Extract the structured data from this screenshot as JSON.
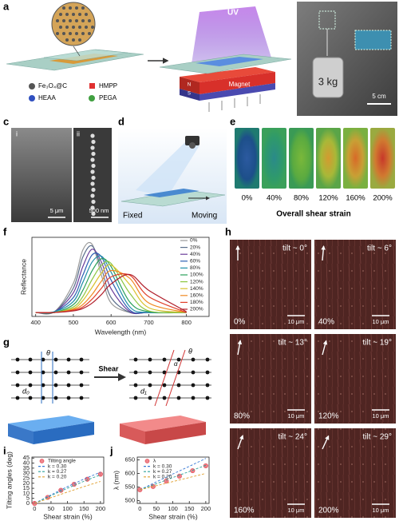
{
  "panel_labels": [
    "a",
    "b",
    "c",
    "d",
    "e",
    "f",
    "g",
    "h",
    "i",
    "j"
  ],
  "panel_a": {
    "legend": [
      "Fe₃O₄@C",
      "HMPP",
      "HEAA",
      "PEGA"
    ],
    "uv": "UV",
    "magnet": "Magnet",
    "north": "N",
    "south": "S"
  },
  "panel_b": {
    "weight": "3 kg",
    "scale": "5 cm"
  },
  "panel_c": {
    "sub_labels": [
      "i",
      "ii"
    ],
    "scales": [
      "5 μm",
      "500 nm"
    ]
  },
  "panel_d": {
    "fixed": "Fixed",
    "moving": "Moving"
  },
  "panel_e": {
    "strains": [
      "0%",
      "40%",
      "80%",
      "120%",
      "160%",
      "200%"
    ],
    "axis_label": "Overall shear strain"
  },
  "panel_g": {
    "labels": [
      "θ",
      "d₀",
      "Shear",
      "θ",
      "α",
      "d₁"
    ]
  },
  "panel_h": {
    "tiles": [
      {
        "tilt": "tilt ~ 0°",
        "strain": "0%",
        "scale": "10 μm"
      },
      {
        "tilt": "tilt ~ 6°",
        "strain": "40%",
        "scale": "10 μm"
      },
      {
        "tilt": "tilt ~ 13°",
        "strain": "80%",
        "scale": "10 μm"
      },
      {
        "tilt": "tilt ~ 19°",
        "strain": "120%",
        "scale": "10 μm"
      },
      {
        "tilt": "tilt ~ 24°",
        "strain": "160%",
        "scale": "10 μm"
      },
      {
        "tilt": "tilt ~ 29°",
        "strain": "200%",
        "scale": "10 μm"
      }
    ]
  },
  "chart_data": [
    {
      "type": "line",
      "smooth": true,
      "xlabel": "Wavelength (nm)",
      "ylabel": "Reflectance",
      "x": [
        400,
        450,
        500,
        525,
        550,
        575,
        600,
        650,
        700,
        800
      ],
      "xlim": [
        390,
        860
      ],
      "xticks": [
        400,
        500,
        600,
        700,
        800
      ],
      "ylim": [
        0,
        1
      ],
      "legend": "right",
      "series": [
        {
          "name": "0%",
          "color": "#9a9a9a",
          "values": [
            0.05,
            0.06,
            0.42,
            0.84,
            0.91,
            0.51,
            0.17,
            0.05,
            0.05,
            0.05
          ]
        },
        {
          "name": "20%",
          "color": "#5b6f8c",
          "values": [
            0.05,
            0.06,
            0.36,
            0.75,
            0.89,
            0.6,
            0.24,
            0.05,
            0.05,
            0.05
          ]
        },
        {
          "name": "40%",
          "color": "#6a3d9a",
          "values": [
            0.05,
            0.06,
            0.3,
            0.63,
            0.85,
            0.68,
            0.35,
            0.06,
            0.05,
            0.05
          ]
        },
        {
          "name": "60%",
          "color": "#2c5fb3",
          "values": [
            0.05,
            0.06,
            0.24,
            0.52,
            0.78,
            0.75,
            0.46,
            0.08,
            0.05,
            0.05
          ]
        },
        {
          "name": "80%",
          "color": "#1f8fa8",
          "values": [
            0.05,
            0.06,
            0.19,
            0.43,
            0.69,
            0.76,
            0.56,
            0.12,
            0.05,
            0.05
          ]
        },
        {
          "name": "100%",
          "color": "#2aa05a",
          "values": [
            0.05,
            0.05,
            0.15,
            0.33,
            0.58,
            0.73,
            0.63,
            0.18,
            0.06,
            0.05
          ]
        },
        {
          "name": "120%",
          "color": "#8cc63f",
          "values": [
            0.05,
            0.05,
            0.12,
            0.25,
            0.47,
            0.65,
            0.67,
            0.29,
            0.07,
            0.05
          ]
        },
        {
          "name": "140%",
          "color": "#d9c22e",
          "values": [
            0.05,
            0.05,
            0.1,
            0.2,
            0.37,
            0.55,
            0.65,
            0.4,
            0.11,
            0.05
          ]
        },
        {
          "name": "160%",
          "color": "#f08a24",
          "values": [
            0.05,
            0.05,
            0.09,
            0.15,
            0.28,
            0.45,
            0.58,
            0.48,
            0.17,
            0.05
          ]
        },
        {
          "name": "180%",
          "color": "#e0402a",
          "values": [
            0.05,
            0.05,
            0.08,
            0.12,
            0.22,
            0.36,
            0.5,
            0.52,
            0.25,
            0.05
          ]
        },
        {
          "name": "200%",
          "color": "#b01e2a",
          "values": [
            0.05,
            0.05,
            0.07,
            0.1,
            0.17,
            0.28,
            0.41,
            0.53,
            0.33,
            0.06
          ]
        }
      ]
    },
    {
      "type": "scatter",
      "xlabel": "Shear strain (%)",
      "ylabel": "Tilting angles (deg)",
      "xlim": [
        -8,
        210
      ],
      "xticks": [
        0,
        50,
        100,
        150,
        200
      ],
      "ylim": [
        0,
        46
      ],
      "yticks": [
        0,
        5,
        10,
        15,
        20,
        25,
        30,
        35,
        40,
        45
      ],
      "legend": "upper left",
      "series": [
        {
          "name": "Tilting angle",
          "color": "#e8606a",
          "x": [
            0,
            40,
            80,
            120,
            160,
            200
          ],
          "values": [
            0,
            6,
            13,
            19,
            24,
            29
          ],
          "errors": [
            0.5,
            1,
            1.5,
            2,
            2,
            2.5
          ]
        },
        {
          "name": "k = 0.30",
          "color": "#3a7bd5",
          "line_style": "dashed",
          "x": [
            0,
            50,
            100,
            150,
            200
          ],
          "values": [
            0,
            8.5,
            16.7,
            24.2,
            31.0
          ]
        },
        {
          "name": "k = 0.27",
          "color": "#2aa198",
          "line_style": "dashed",
          "x": [
            0,
            50,
            100,
            150,
            200
          ],
          "values": [
            0,
            7.7,
            15.1,
            22.0,
            28.4
          ]
        },
        {
          "name": "k = 0.20",
          "color": "#e0a030",
          "line_style": "dashed",
          "x": [
            0,
            50,
            100,
            150,
            200
          ],
          "values": [
            0,
            5.7,
            11.3,
            16.7,
            21.8
          ]
        }
      ]
    },
    {
      "type": "scatter",
      "xlabel": "Shear strain (%)",
      "ylabel": "λ (nm)",
      "xlim": [
        -8,
        210
      ],
      "xticks": [
        0,
        50,
        100,
        150,
        200
      ],
      "ylim": [
        490,
        660
      ],
      "yticks": [
        500,
        550,
        600,
        650
      ],
      "legend": "upper left",
      "series": [
        {
          "name": "λ",
          "color": "#e8606a",
          "x": [
            0,
            40,
            80,
            120,
            160,
            200
          ],
          "values": [
            540,
            552,
            572,
            590,
            610,
            628
          ],
          "errors": [
            2,
            3,
            3,
            4,
            4,
            5
          ]
        },
        {
          "name": "k = 0.30",
          "color": "#3a7bd5",
          "line_style": "dashed",
          "x": [
            0,
            50,
            100,
            150,
            200
          ],
          "values": [
            540,
            569,
            598,
            626,
            655
          ]
        },
        {
          "name": "k = 0.27",
          "color": "#2aa198",
          "line_style": "dashed",
          "x": [
            0,
            50,
            100,
            150,
            200
          ],
          "values": [
            540,
            562,
            585,
            607,
            630
          ]
        },
        {
          "name": "k = 0.20",
          "color": "#e0a030",
          "line_style": "dashed",
          "x": [
            0,
            50,
            100,
            150,
            200
          ],
          "values": [
            540,
            555,
            570,
            585,
            600
          ]
        }
      ]
    }
  ]
}
